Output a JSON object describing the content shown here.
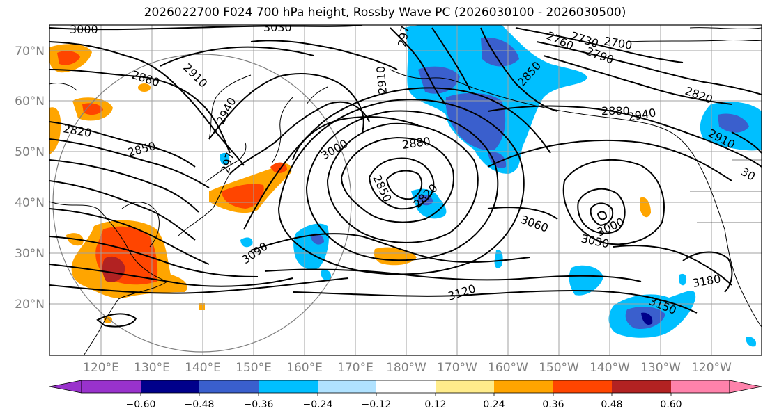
{
  "title": "2026022700 F024 700 hPa height, Rossby Wave PC (2026030100 - 2026030500)",
  "latitude_labels": [
    "70°N",
    "60°N",
    "50°N",
    "40°N",
    "30°N",
    "20°N"
  ],
  "longitude_labels": [
    "120°E",
    "130°E",
    "140°E",
    "150°E",
    "160°E",
    "170°E",
    "180°W",
    "170°W",
    "160°W",
    "150°W",
    "140°W",
    "130°W",
    "120°W"
  ],
  "colorbar": {
    "colors": [
      "#9932cc",
      "#00008b",
      "#3a5fcd",
      "#00bfff",
      "#b0e2ff",
      "#ffffff",
      "#ffec8b",
      "#ffa500",
      "#ff4500",
      "#b22222",
      "#ff82ab"
    ],
    "tick_labels": [
      "−0.60",
      "−0.48",
      "−0.36",
      "−0.24",
      "−0.12",
      "0.12",
      "0.24",
      "0.36",
      "0.48",
      "0.60"
    ]
  },
  "contour_labels": [
    "3000",
    "3030",
    "2880",
    "2910",
    "2940",
    "2820",
    "2850",
    "297",
    "2760",
    "2730",
    "2700",
    "2790",
    "2820",
    "2850",
    "2880",
    "2910",
    "3000",
    "2880",
    "2850",
    "2820",
    "3060",
    "3030",
    "3000",
    "3090",
    "3120",
    "3150",
    "3180",
    "2910",
    "30",
    "297",
    "2940"
  ],
  "colors": {
    "frame": "#000000",
    "grid": "#a0a0a0",
    "contour": "#000000"
  }
}
